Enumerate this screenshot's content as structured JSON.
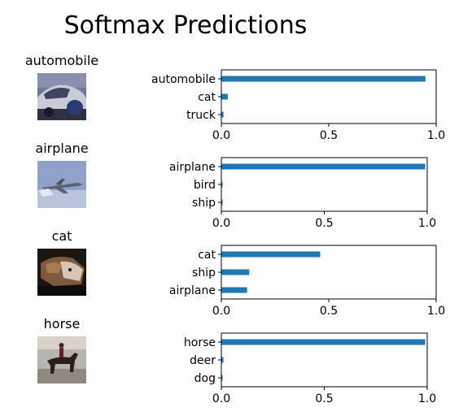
{
  "figure": {
    "title": "Softmax Predictions",
    "samples": [
      {
        "label": "automobile",
        "icon": "car-photo-thumbnail"
      },
      {
        "label": "airplane",
        "icon": "jet-photo-thumbnail"
      },
      {
        "label": "cat",
        "icon": "cat-photo-thumbnail"
      },
      {
        "label": "horse",
        "icon": "horse-rider-photo-thumbnail"
      }
    ]
  },
  "colors": {
    "bar": "#1f77b4",
    "axis": "#000000"
  },
  "chart_data": [
    {
      "type": "bar",
      "orientation": "horizontal",
      "categories": [
        "automobile",
        "cat",
        "truck"
      ],
      "values": [
        0.95,
        0.03,
        0.01
      ],
      "xlim": [
        0,
        1
      ],
      "xticks": [
        "0.0",
        "0.5",
        "1.0"
      ],
      "grid": false
    },
    {
      "type": "bar",
      "orientation": "horizontal",
      "categories": [
        "airplane",
        "bird",
        "ship"
      ],
      "values": [
        0.99,
        0.002,
        0.001
      ],
      "xlim": [
        0,
        1
      ],
      "xticks": [
        "0.0",
        "0.5",
        "1.0"
      ],
      "grid": false
    },
    {
      "type": "bar",
      "orientation": "horizontal",
      "categories": [
        "cat",
        "ship",
        "airplane"
      ],
      "values": [
        0.46,
        0.13,
        0.12
      ],
      "xlim": [
        0,
        1
      ],
      "xticks": [
        "0.0",
        "0.5",
        "1.0"
      ],
      "grid": false
    },
    {
      "type": "bar",
      "orientation": "horizontal",
      "categories": [
        "horse",
        "deer",
        "dog"
      ],
      "values": [
        0.99,
        0.01,
        0.003
      ],
      "xlim": [
        0,
        1
      ],
      "xticks": [
        "0.0",
        "0.5",
        "1.0"
      ],
      "grid": false
    }
  ]
}
